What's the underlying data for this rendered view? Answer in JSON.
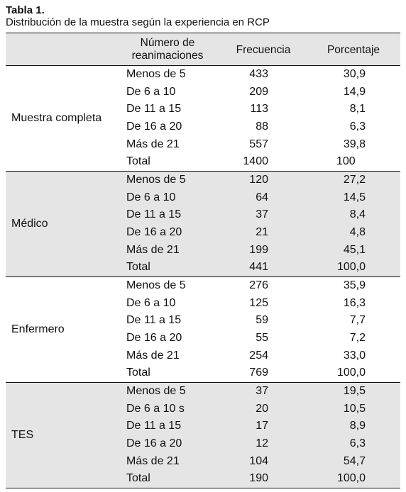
{
  "caption": {
    "title": "Tabla 1.",
    "subtitle": "Distribución de la muestra según la experiencia en RCP"
  },
  "table": {
    "headers": {
      "num_line1": "Número de",
      "num_line2": "reanimaciones",
      "frecuencia": "Frecuencia",
      "porcentaje": "Porcentaje"
    },
    "groups": [
      {
        "label": "Muestra completa",
        "rows": [
          {
            "range": "Menos de 5",
            "freq": "433",
            "pct": "30,9"
          },
          {
            "range": "De 6 a 10",
            "freq": "209",
            "pct": "14,9"
          },
          {
            "range": "De 11 a 15",
            "freq": "113",
            "pct": "8,1"
          },
          {
            "range": "De 16 a 20",
            "freq": "88",
            "pct": "6,3"
          },
          {
            "range": "Más de 21",
            "freq": "557",
            "pct": "39,8"
          },
          {
            "range": "Total",
            "freq": "1400",
            "pct": "100"
          }
        ]
      },
      {
        "label": "Médico",
        "rows": [
          {
            "range": "Menos de 5",
            "freq": "120",
            "pct": "27,2"
          },
          {
            "range": "De 6 a 10",
            "freq": "64",
            "pct": "14,5"
          },
          {
            "range": "De 11 a 15",
            "freq": "37",
            "pct": "8,4"
          },
          {
            "range": "De 16 a 20",
            "freq": "21",
            "pct": "4,8"
          },
          {
            "range": "Más de 21",
            "freq": "199",
            "pct": "45,1"
          },
          {
            "range": "Total",
            "freq": "441",
            "pct": "100,0"
          }
        ]
      },
      {
        "label": "Enfermero",
        "rows": [
          {
            "range": "Menos de 5",
            "freq": "276",
            "pct": "35,9"
          },
          {
            "range": "De 6 a 10",
            "freq": "125",
            "pct": "16,3"
          },
          {
            "range": "De 11 a 15",
            "freq": "59",
            "pct": "7,7"
          },
          {
            "range": "De 16 a 20",
            "freq": "55",
            "pct": "7,2"
          },
          {
            "range": "Más de 21",
            "freq": "254",
            "pct": "33,0"
          },
          {
            "range": "Total",
            "freq": "769",
            "pct": "100,0"
          }
        ]
      },
      {
        "label": "TES",
        "rows": [
          {
            "range": "Menos de 5",
            "freq": "37",
            "pct": "19,5"
          },
          {
            "range": "De 6 a 10 s",
            "freq": "20",
            "pct": "10,5"
          },
          {
            "range": "De 11 a 15",
            "freq": "17",
            "pct": "8,9"
          },
          {
            "range": "De 16 a 20",
            "freq": "12",
            "pct": "6,3"
          },
          {
            "range": "Más de 21",
            "freq": "104",
            "pct": "54,7"
          },
          {
            "range": "Total",
            "freq": "190",
            "pct": "100,0"
          }
        ]
      }
    ]
  }
}
